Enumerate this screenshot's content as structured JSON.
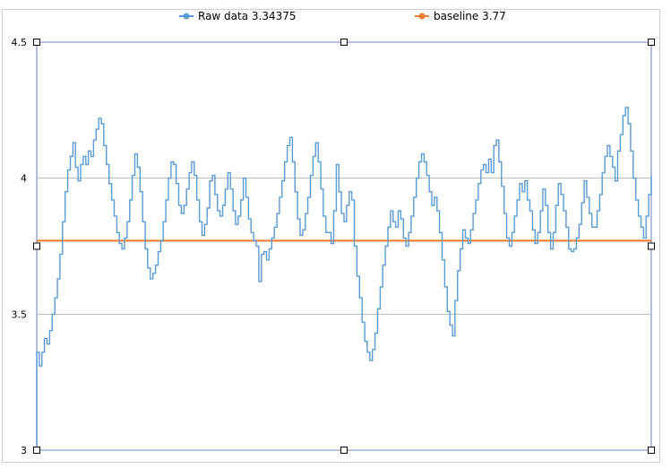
{
  "chart_data": {
    "type": "line",
    "title": "",
    "xlabel": "",
    "ylabel": "",
    "ylim": [
      3,
      4.5
    ],
    "yticks": [
      "3",
      "3.5",
      "4",
      "4.5"
    ],
    "grid": true,
    "legend_position": "top",
    "series": [
      {
        "name": "Raw data 3.34375",
        "color": "#5b9bd5",
        "step": true,
        "values": [
          3.36,
          3.31,
          3.36,
          3.41,
          3.39,
          3.44,
          3.5,
          3.56,
          3.63,
          3.72,
          3.84,
          3.95,
          4.03,
          4.08,
          4.13,
          4.04,
          3.99,
          4.05,
          4.08,
          4.05,
          4.1,
          4.08,
          4.14,
          4.18,
          4.22,
          4.2,
          4.12,
          4.05,
          3.98,
          3.92,
          3.86,
          3.8,
          3.76,
          3.74,
          3.78,
          3.84,
          3.92,
          4.01,
          4.09,
          4.04,
          3.95,
          3.84,
          3.74,
          3.67,
          3.63,
          3.65,
          3.68,
          3.73,
          3.77,
          3.84,
          3.92,
          4.0,
          4.06,
          4.05,
          3.98,
          3.9,
          3.87,
          3.9,
          3.96,
          4.02,
          4.06,
          4.01,
          3.92,
          3.84,
          3.79,
          3.83,
          3.89,
          3.99,
          4.01,
          3.94,
          3.88,
          3.86,
          3.9,
          3.96,
          4.02,
          3.96,
          3.88,
          3.83,
          3.86,
          3.92,
          4.0,
          3.93,
          3.85,
          3.8,
          3.77,
          3.75,
          3.62,
          3.72,
          3.73,
          3.7,
          3.74,
          3.78,
          3.82,
          3.87,
          3.93,
          3.99,
          4.06,
          4.12,
          4.15,
          4.06,
          3.95,
          3.85,
          3.79,
          3.81,
          3.87,
          3.93,
          4.01,
          4.08,
          4.13,
          4.06,
          3.96,
          3.86,
          3.8,
          3.8,
          3.76,
          3.88,
          4.05,
          3.95,
          3.87,
          3.84,
          3.9,
          3.95,
          3.92,
          3.75,
          3.64,
          3.56,
          3.47,
          3.4,
          3.36,
          3.33,
          3.37,
          3.43,
          3.52,
          3.6,
          3.68,
          3.75,
          3.82,
          3.88,
          3.84,
          3.82,
          3.88,
          3.85,
          3.78,
          3.75,
          3.8,
          3.86,
          3.93,
          4.0,
          4.06,
          4.09,
          4.06,
          4.01,
          3.95,
          3.9,
          3.93,
          3.88,
          3.8,
          3.7,
          3.6,
          3.51,
          3.46,
          3.42,
          3.55,
          3.66,
          3.74,
          3.81,
          3.78,
          3.76,
          3.81,
          3.87,
          3.92,
          3.98,
          4.03,
          4.05,
          4.02,
          4.07,
          4.02,
          4.12,
          4.14,
          4.06,
          3.97,
          3.87,
          3.78,
          3.75,
          3.8,
          3.86,
          3.92,
          3.98,
          3.95,
          3.99,
          3.92,
          3.88,
          3.81,
          3.76,
          3.8,
          3.88,
          3.96,
          3.9,
          3.8,
          3.74,
          3.8,
          3.9,
          3.98,
          3.94,
          3.88,
          3.82,
          3.74,
          3.73,
          3.74,
          3.78,
          3.83,
          3.91,
          3.99,
          3.93,
          3.87,
          3.82,
          3.82,
          3.88,
          3.94,
          4.02,
          4.08,
          4.12,
          4.08,
          4.04,
          3.99,
          4.1,
          4.16,
          4.23,
          4.26,
          4.2,
          4.1,
          4.0,
          3.92,
          3.86,
          3.82,
          3.78,
          3.86,
          3.94,
          4.01
        ]
      },
      {
        "name": "baseline 3.77",
        "color": "#ed7d31",
        "constant": 3.77
      }
    ]
  }
}
